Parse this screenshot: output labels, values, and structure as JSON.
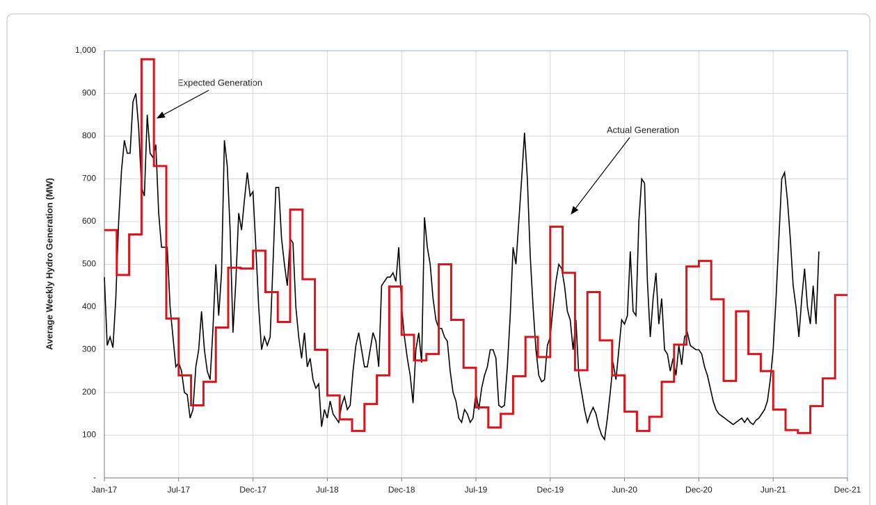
{
  "chart_data": {
    "type": "line",
    "y_label": "Average  Weekly  Hydro Generation (MW)",
    "xlim": [
      0,
      260
    ],
    "xticks": [
      {
        "value": 0,
        "label": "Jan-17"
      },
      {
        "value": 26,
        "label": "Jul-17"
      },
      {
        "value": 52,
        "label": "Dec-17"
      },
      {
        "value": 78,
        "label": "Jul-18"
      },
      {
        "value": 104,
        "label": "Dec-18"
      },
      {
        "value": 130,
        "label": "Jul-19"
      },
      {
        "value": 156,
        "label": "Dec-19"
      },
      {
        "value": 182,
        "label": "Jun-20"
      },
      {
        "value": 208,
        "label": "Dec-20"
      },
      {
        "value": 234,
        "label": "Jun-21"
      },
      {
        "value": 260,
        "label": "Dec-21"
      }
    ],
    "ylim": [
      0,
      1000
    ],
    "yticks": [
      {
        "value": 0,
        "label": "-"
      },
      100,
      200,
      300,
      400,
      500,
      600,
      700,
      800,
      900,
      {
        "value": 1000,
        "label": "1,000"
      }
    ],
    "grid": true,
    "annotations": [
      {
        "text": "Expected Generation"
      },
      {
        "text": "Actual Generation"
      }
    ],
    "series": [
      {
        "name": "Actual Generation",
        "color": "#000000",
        "values": [
          470,
          310,
          330,
          305,
          420,
          600,
          720,
          790,
          760,
          760,
          880,
          900,
          820,
          680,
          660,
          850,
          760,
          750,
          780,
          620,
          540,
          540,
          540,
          400,
          330,
          260,
          270,
          250,
          200,
          195,
          140,
          160,
          260,
          300,
          390,
          300,
          250,
          230,
          350,
          500,
          380,
          480,
          790,
          730,
          580,
          340,
          460,
          620,
          580,
          650,
          715,
          660,
          670,
          540,
          400,
          300,
          330,
          310,
          330,
          500,
          680,
          680,
          560,
          500,
          450,
          560,
          550,
          400,
          330,
          280,
          340,
          260,
          280,
          230,
          210,
          220,
          120,
          160,
          140,
          180,
          150,
          140,
          130,
          170,
          190,
          160,
          170,
          250,
          310,
          340,
          300,
          260,
          260,
          300,
          340,
          320,
          260,
          450,
          460,
          470,
          470,
          480,
          460,
          540,
          400,
          330,
          280,
          240,
          175,
          300,
          340,
          270,
          610,
          540,
          500,
          420,
          370,
          350,
          350,
          330,
          320,
          250,
          200,
          180,
          140,
          130,
          160,
          150,
          130,
          140,
          200,
          160,
          210,
          240,
          260,
          300,
          300,
          280,
          170,
          165,
          170,
          260,
          380,
          540,
          500,
          600,
          700,
          808,
          700,
          520,
          400,
          300,
          240,
          225,
          230,
          310,
          330,
          400,
          460,
          500,
          490,
          450,
          390,
          370,
          300,
          370,
          240,
          200,
          160,
          130,
          150,
          165,
          150,
          120,
          100,
          90,
          140,
          200,
          270,
          230,
          300,
          370,
          360,
          380,
          530,
          390,
          380,
          600,
          700,
          690,
          460,
          330,
          420,
          480,
          360,
          420,
          300,
          290,
          250,
          280,
          240,
          310,
          265,
          330,
          340,
          310,
          305,
          300,
          300,
          290,
          260,
          240,
          210,
          180,
          160,
          150,
          145,
          140,
          135,
          130,
          125,
          130,
          135,
          140,
          130,
          140,
          130,
          125,
          135,
          140,
          150,
          160,
          180,
          230,
          300,
          420,
          560,
          700,
          715,
          650,
          560,
          450,
          400,
          330,
          420,
          490,
          400,
          360,
          450,
          360,
          530
        ]
      },
      {
        "name": "Expected Generation",
        "color": "#d9141c",
        "values": [
          580,
          475,
          570,
          980,
          730,
          373,
          240,
          170,
          225,
          352,
          492,
          490,
          532,
          435,
          365,
          628,
          465,
          300,
          193,
          137,
          110,
          173,
          240,
          448,
          335,
          275,
          290,
          500,
          370,
          258,
          165,
          118,
          150,
          238,
          330,
          283,
          588,
          480,
          252,
          435,
          322,
          240,
          155,
          110,
          143,
          225,
          312,
          495,
          508,
          418,
          227,
          390,
          290,
          250,
          160,
          112,
          105,
          168,
          233,
          428
        ]
      }
    ]
  }
}
